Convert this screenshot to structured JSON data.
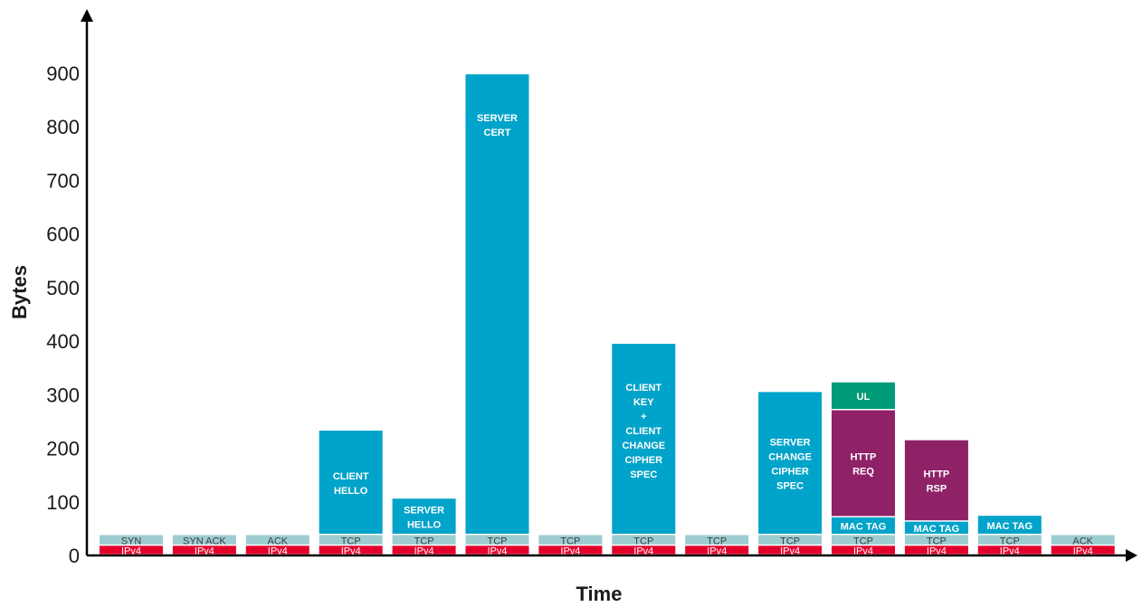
{
  "chart_data": {
    "type": "bar",
    "stacked": true,
    "ylabel": "Bytes",
    "xlabel": "Time",
    "ylim": [
      0,
      1000
    ],
    "yticks": [
      0,
      100,
      200,
      300,
      400,
      500,
      600,
      700,
      800,
      900
    ],
    "grid": false,
    "colors": {
      "IPv4": "#e4002b",
      "TCP_base": "#9dcdd1",
      "blue": "#00a3c9",
      "purple": "#8f2167",
      "green": "#009b77",
      "label_white": "#ffffff",
      "label_dark": "#3a3a3a"
    },
    "packets": [
      {
        "segments": [
          {
            "label": "IPv4",
            "value": 18,
            "color": "IPv4"
          },
          {
            "label": "SYN",
            "value": 20,
            "color": "TCP_base"
          }
        ]
      },
      {
        "segments": [
          {
            "label": "IPv4",
            "value": 18,
            "color": "IPv4"
          },
          {
            "label": "SYN ACK",
            "value": 20,
            "color": "TCP_base"
          }
        ]
      },
      {
        "segments": [
          {
            "label": "IPv4",
            "value": 18,
            "color": "IPv4"
          },
          {
            "label": "ACK",
            "value": 20,
            "color": "TCP_base"
          }
        ]
      },
      {
        "segments": [
          {
            "label": "IPv4",
            "value": 18,
            "color": "IPv4"
          },
          {
            "label": "TCP",
            "value": 20,
            "color": "TCP_base"
          },
          {
            "label": "CLIENT\nHELLO",
            "value": 195,
            "color": "blue"
          }
        ]
      },
      {
        "segments": [
          {
            "label": "IPv4",
            "value": 18,
            "color": "IPv4"
          },
          {
            "label": "TCP",
            "value": 20,
            "color": "TCP_base"
          },
          {
            "label": "SERVER\nHELLO",
            "value": 68,
            "color": "blue"
          }
        ]
      },
      {
        "segments": [
          {
            "label": "IPv4",
            "value": 18,
            "color": "IPv4"
          },
          {
            "label": "TCP",
            "value": 20,
            "color": "TCP_base"
          },
          {
            "label": "SERVER\nCERT",
            "value": 860,
            "color": "blue"
          }
        ]
      },
      {
        "segments": [
          {
            "label": "IPv4",
            "value": 18,
            "color": "IPv4"
          },
          {
            "label": "TCP",
            "value": 20,
            "color": "TCP_base"
          }
        ]
      },
      {
        "segments": [
          {
            "label": "IPv4",
            "value": 18,
            "color": "IPv4"
          },
          {
            "label": "TCP",
            "value": 20,
            "color": "TCP_base"
          },
          {
            "label": "CLIENT\nKEY\n+\nCLIENT\nCHANGE\nCIPHER\nSPEC",
            "value": 357,
            "color": "blue"
          }
        ]
      },
      {
        "segments": [
          {
            "label": "IPv4",
            "value": 18,
            "color": "IPv4"
          },
          {
            "label": "TCP",
            "value": 20,
            "color": "TCP_base"
          }
        ]
      },
      {
        "segments": [
          {
            "label": "IPv4",
            "value": 18,
            "color": "IPv4"
          },
          {
            "label": "TCP",
            "value": 20,
            "color": "TCP_base"
          },
          {
            "label": "SERVER\nCHANGE\nCIPHER\nSPEC",
            "value": 267,
            "color": "blue"
          }
        ]
      },
      {
        "segments": [
          {
            "label": "IPv4",
            "value": 18,
            "color": "IPv4"
          },
          {
            "label": "TCP",
            "value": 20,
            "color": "TCP_base"
          },
          {
            "label": "MAC TAG",
            "value": 33,
            "color": "blue"
          },
          {
            "label": "HTTP\nREQ",
            "value": 200,
            "color": "purple"
          },
          {
            "label": "UL",
            "value": 52,
            "color": "green"
          }
        ]
      },
      {
        "segments": [
          {
            "label": "IPv4",
            "value": 18,
            "color": "IPv4"
          },
          {
            "label": "TCP",
            "value": 20,
            "color": "TCP_base"
          },
          {
            "label": "MAC TAG",
            "value": 25,
            "color": "blue"
          },
          {
            "label": "HTTP\nRSP",
            "value": 152,
            "color": "purple"
          }
        ]
      },
      {
        "segments": [
          {
            "label": "IPv4",
            "value": 18,
            "color": "IPv4"
          },
          {
            "label": "TCP",
            "value": 20,
            "color": "TCP_base"
          },
          {
            "label": "MAC TAG",
            "value": 36,
            "color": "blue"
          }
        ]
      },
      {
        "segments": [
          {
            "label": "IPv4",
            "value": 18,
            "color": "IPv4"
          },
          {
            "label": "ACK",
            "value": 20,
            "color": "TCP_base"
          }
        ]
      }
    ]
  }
}
